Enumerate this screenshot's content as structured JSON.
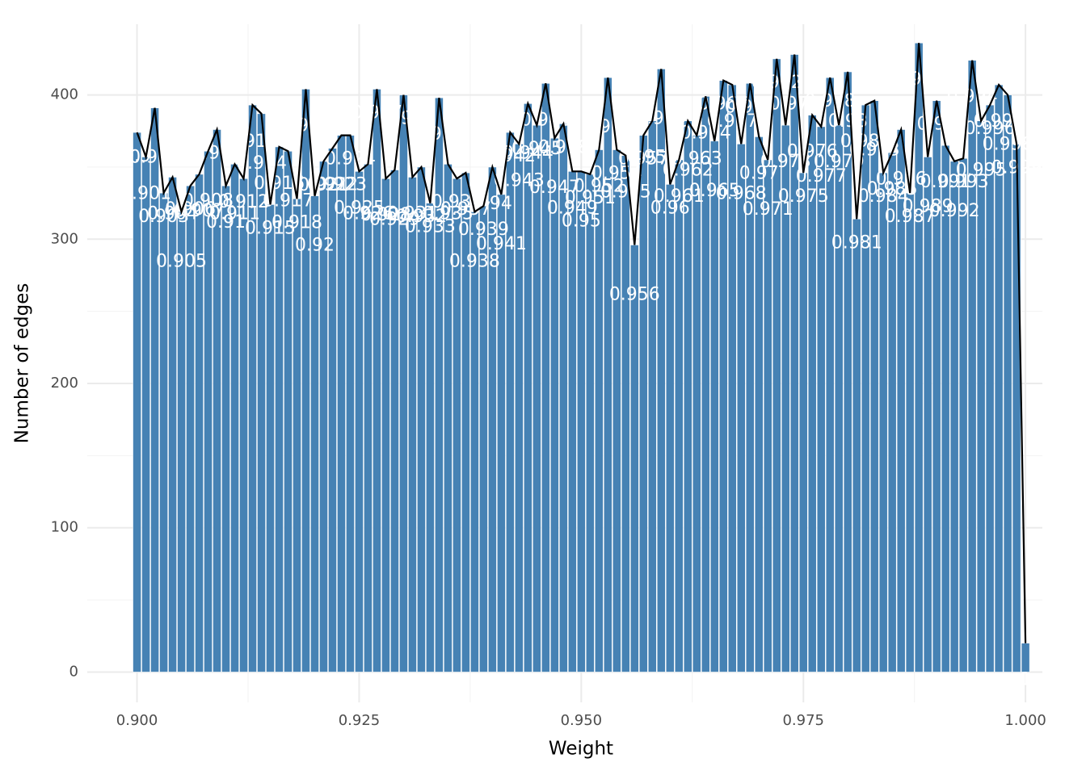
{
  "chart_data": {
    "type": "bar",
    "xlabel": "Weight",
    "ylabel": "Number of edges",
    "x": [
      0.9,
      0.901,
      0.902,
      0.903,
      0.904,
      0.905,
      0.906,
      0.907,
      0.908,
      0.909,
      0.91,
      0.911,
      0.912,
      0.913,
      0.914,
      0.915,
      0.916,
      0.917,
      0.918,
      0.919,
      0.92,
      0.921,
      0.922,
      0.923,
      0.924,
      0.925,
      0.926,
      0.927,
      0.928,
      0.929,
      0.93,
      0.931,
      0.932,
      0.933,
      0.934,
      0.935,
      0.936,
      0.937,
      0.938,
      0.939,
      0.94,
      0.941,
      0.942,
      0.943,
      0.944,
      0.945,
      0.946,
      0.947,
      0.948,
      0.949,
      0.95,
      0.951,
      0.952,
      0.953,
      0.954,
      0.955,
      0.956,
      0.957,
      0.958,
      0.959,
      0.96,
      0.961,
      0.962,
      0.963,
      0.964,
      0.965,
      0.966,
      0.967,
      0.968,
      0.969,
      0.97,
      0.971,
      0.972,
      0.973,
      0.974,
      0.975,
      0.976,
      0.977,
      0.978,
      0.979,
      0.98,
      0.981,
      0.982,
      0.983,
      0.984,
      0.985,
      0.986,
      0.987,
      0.988,
      0.989,
      0.99,
      0.991,
      0.992,
      0.993,
      0.994,
      0.995,
      0.996,
      0.997,
      0.998,
      0.999,
      1
    ],
    "values": [
      374,
      357,
      391,
      332,
      343,
      319,
      337,
      345,
      361,
      376,
      337,
      352,
      342,
      393,
      387,
      324,
      364,
      361,
      328,
      404,
      330,
      354,
      363,
      372,
      372,
      347,
      352,
      404,
      342,
      348,
      400,
      343,
      350,
      325,
      398,
      352,
      342,
      346,
      319,
      323,
      350,
      331,
      374,
      366,
      394,
      379,
      408,
      370,
      380,
      347,
      347,
      345,
      362,
      412,
      362,
      358,
      296,
      372,
      382,
      418,
      338,
      355,
      382,
      372,
      399,
      368,
      410,
      407,
      366,
      408,
      371,
      355,
      425,
      379,
      428,
      346,
      386,
      378,
      412,
      379,
      416,
      314,
      393,
      396,
      346,
      360,
      376,
      332,
      436,
      357,
      396,
      365,
      354,
      356,
      424,
      382,
      393,
      407,
      400,
      366,
      20
    ],
    "color": "#4682b4",
    "line_color": "#000000",
    "xlim": [
      0.8944,
      1.0019
    ],
    "xticks": [
      {
        "value": 0.9,
        "label": "0.900"
      },
      {
        "value": 0.925,
        "label": "0.925"
      },
      {
        "value": 0.95,
        "label": "0.950"
      },
      {
        "value": 0.975,
        "label": "0.975"
      },
      {
        "value": 1,
        "label": "1.000"
      }
    ],
    "ylim": [
      -21,
      449
    ],
    "yticks": [
      0,
      100,
      200,
      300,
      400
    ],
    "grid": true
  }
}
